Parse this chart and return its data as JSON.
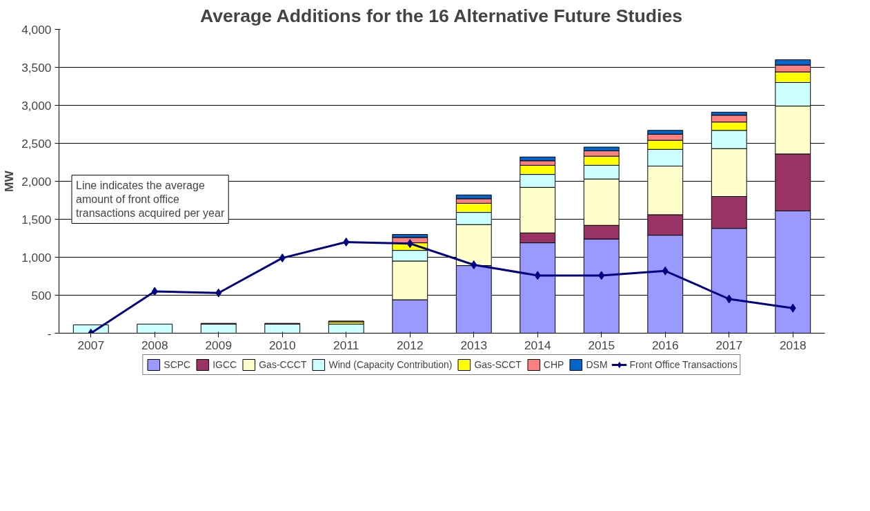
{
  "chart_data": {
    "type": "bar",
    "stacked": true,
    "title": "Average Additions for the 16 Alternative Future Studies",
    "ylabel": "MW",
    "categories": [
      "2007",
      "2008",
      "2009",
      "2010",
      "2011",
      "2012",
      "2013",
      "2014",
      "2015",
      "2016",
      "2017",
      "2018"
    ],
    "series": [
      {
        "name": "SCPC",
        "color": "#9999ff",
        "values": [
          null,
          null,
          null,
          null,
          null,
          440,
          890,
          1190,
          1240,
          1290,
          1380,
          1610
        ]
      },
      {
        "name": "IGCC",
        "color": "#993366",
        "values": [
          null,
          null,
          null,
          null,
          null,
          null,
          null,
          130,
          180,
          270,
          420,
          750
        ]
      },
      {
        "name": "Gas-CCCT",
        "color": "#ffffcc",
        "values": [
          null,
          null,
          null,
          null,
          null,
          510,
          540,
          600,
          610,
          640,
          630,
          630
        ]
      },
      {
        "name": "Wind (Capacity Contribution)",
        "color": "#ccffff",
        "values": [
          110,
          120,
          120,
          120,
          120,
          140,
          160,
          170,
          180,
          220,
          240,
          310
        ]
      },
      {
        "name": "Gas-SCCT",
        "color": "#ffff00",
        "values": [
          null,
          null,
          null,
          null,
          30,
          100,
          120,
          120,
          120,
          120,
          110,
          140
        ]
      },
      {
        "name": "CHP",
        "color": "#ff8080",
        "values": [
          null,
          null,
          10,
          10,
          10,
          70,
          60,
          60,
          70,
          80,
          90,
          90
        ]
      },
      {
        "name": "DSM",
        "color": "#0066cc",
        "values": [
          null,
          null,
          null,
          null,
          null,
          40,
          50,
          50,
          50,
          50,
          40,
          70
        ]
      },
      {
        "name": "Front Office Transactions",
        "type": "line",
        "color": "#000080",
        "marker": "diamond",
        "values": [
          0,
          550,
          530,
          990,
          1200,
          1180,
          900,
          760,
          760,
          820,
          450,
          330
        ]
      }
    ],
    "ylim": [
      0,
      4000
    ],
    "yticks": [
      {
        "value": 0,
        "label": "-"
      },
      {
        "value": 500,
        "label": "500"
      },
      {
        "value": 1000,
        "label": "1,000"
      },
      {
        "value": 1500,
        "label": "1,500"
      },
      {
        "value": 2000,
        "label": "2,000"
      },
      {
        "value": 2500,
        "label": "2,500"
      },
      {
        "value": 3000,
        "label": "3,000"
      },
      {
        "value": 3500,
        "label": "3,500"
      },
      {
        "value": 4000,
        "label": "4,000"
      }
    ],
    "grid": "y",
    "legend": "bottom",
    "annotations": [
      "Line indicates the average\namount of front office\ntransactions acquired per year"
    ]
  }
}
